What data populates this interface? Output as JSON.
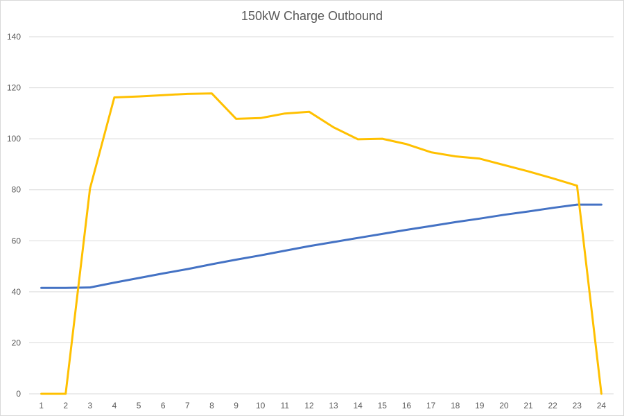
{
  "chart_data": {
    "type": "line",
    "title": "150kW Charge Outbound",
    "xlabel": "",
    "ylabel": "",
    "categories": [
      "1",
      "2",
      "3",
      "4",
      "5",
      "6",
      "7",
      "8",
      "9",
      "10",
      "11",
      "12",
      "13",
      "14",
      "15",
      "16",
      "17",
      "18",
      "19",
      "20",
      "21",
      "22",
      "23",
      "24"
    ],
    "ylim": [
      0,
      140
    ],
    "yticks": [
      0,
      20,
      40,
      60,
      80,
      100,
      120,
      140
    ],
    "grid": true,
    "legend": "none",
    "series": [
      {
        "color": "#4472C4",
        "values": [
          41.5,
          41.5,
          41.7,
          43.6,
          45.4,
          47.2,
          48.9,
          50.8,
          52.6,
          54.3,
          56.1,
          57.9,
          59.5,
          61.1,
          62.7,
          64.3,
          65.8,
          67.3,
          68.7,
          70.2,
          71.5,
          72.9,
          74.2,
          74.2
        ]
      },
      {
        "color": "#FFC000",
        "values": [
          0,
          0,
          80.5,
          116.2,
          116.6,
          117.1,
          117.6,
          117.8,
          107.8,
          108.1,
          109.9,
          110.6,
          104.5,
          99.8,
          100.0,
          97.9,
          94.7,
          93.1,
          92.2,
          89.7,
          87.2,
          84.5,
          81.6,
          0
        ]
      }
    ]
  }
}
